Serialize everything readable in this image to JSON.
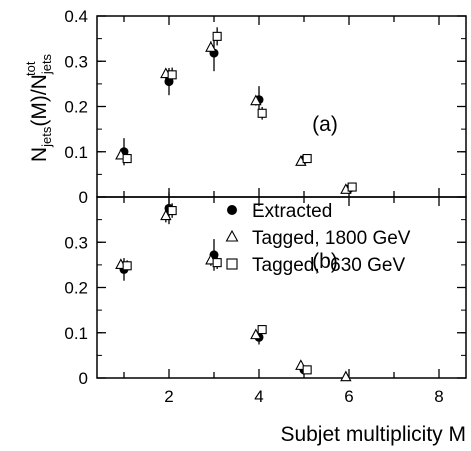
{
  "chart_data": [
    {
      "type": "scatter",
      "panel_label": "(a)",
      "ylabel": {
        "main": "N",
        "sub1": "jets",
        "middle": "(M)/N",
        "sub2": "jets",
        "sup2": "tot"
      },
      "ylim": [
        0,
        0.4
      ],
      "xlim": [
        0.4,
        8.6
      ],
      "yticks": [
        0,
        0.1,
        0.2,
        0.3,
        0.4
      ],
      "xticks": [
        2,
        4,
        6,
        8
      ],
      "grid": false,
      "series": [
        {
          "name": "Extracted",
          "marker": "filled-circle",
          "x": [
            1,
            2,
            3,
            4,
            5,
            6
          ],
          "y": [
            0.1,
            0.255,
            0.318,
            0.215,
            0.083,
            0.018
          ],
          "err": [
            0.03,
            0.03,
            0.04,
            0.03,
            0.012,
            0.006
          ]
        },
        {
          "name": "Tagged, 1800 GeV",
          "marker": "open-triangle",
          "x": [
            1,
            2,
            3,
            4,
            5,
            6
          ],
          "y": [
            0.092,
            0.272,
            0.33,
            0.212,
            0.078,
            0.016
          ],
          "err": [
            0.008,
            0.012,
            0.014,
            0.01,
            0.006,
            0.004
          ]
        },
        {
          "name": "Tagged,  630 GeV",
          "marker": "open-square",
          "x": [
            1,
            2,
            3,
            4,
            5,
            6
          ],
          "y": [
            0.085,
            0.27,
            0.355,
            0.185,
            0.085,
            0.022
          ],
          "err": [
            0.01,
            0.016,
            0.02,
            0.014,
            0.008,
            0.005
          ]
        }
      ]
    },
    {
      "type": "scatter",
      "panel_label": "(b)",
      "xlabel": "Subjet multiplicity M",
      "ylim": [
        0,
        0.4
      ],
      "xlim": [
        0.4,
        8.6
      ],
      "yticks": [
        0,
        0.1,
        0.2,
        0.3
      ],
      "xticks": [
        2,
        4,
        6,
        8
      ],
      "grid": false,
      "legend_position": "upper-right",
      "series": [
        {
          "name": "Extracted",
          "marker": "filled-circle",
          "x": [
            1,
            2,
            3,
            4,
            5
          ],
          "y": [
            0.24,
            0.375,
            0.272,
            0.09,
            0.018
          ],
          "err": [
            0.025,
            0.035,
            0.035,
            0.016,
            0.006
          ]
        },
        {
          "name": "Tagged, 1800 GeV",
          "marker": "open-triangle",
          "x": [
            1,
            2,
            3,
            4,
            5,
            6
          ],
          "y": [
            0.25,
            0.358,
            0.26,
            0.095,
            0.027,
            0.002
          ],
          "err": [
            0.01,
            0.014,
            0.012,
            0.006,
            0.004,
            0.001
          ]
        },
        {
          "name": "Tagged,  630 GeV",
          "marker": "open-square",
          "x": [
            1,
            2,
            3,
            4,
            5
          ],
          "y": [
            0.248,
            0.37,
            0.255,
            0.107,
            0.018
          ],
          "err": [
            0.012,
            0.016,
            0.014,
            0.007,
            0.003
          ]
        }
      ]
    }
  ]
}
